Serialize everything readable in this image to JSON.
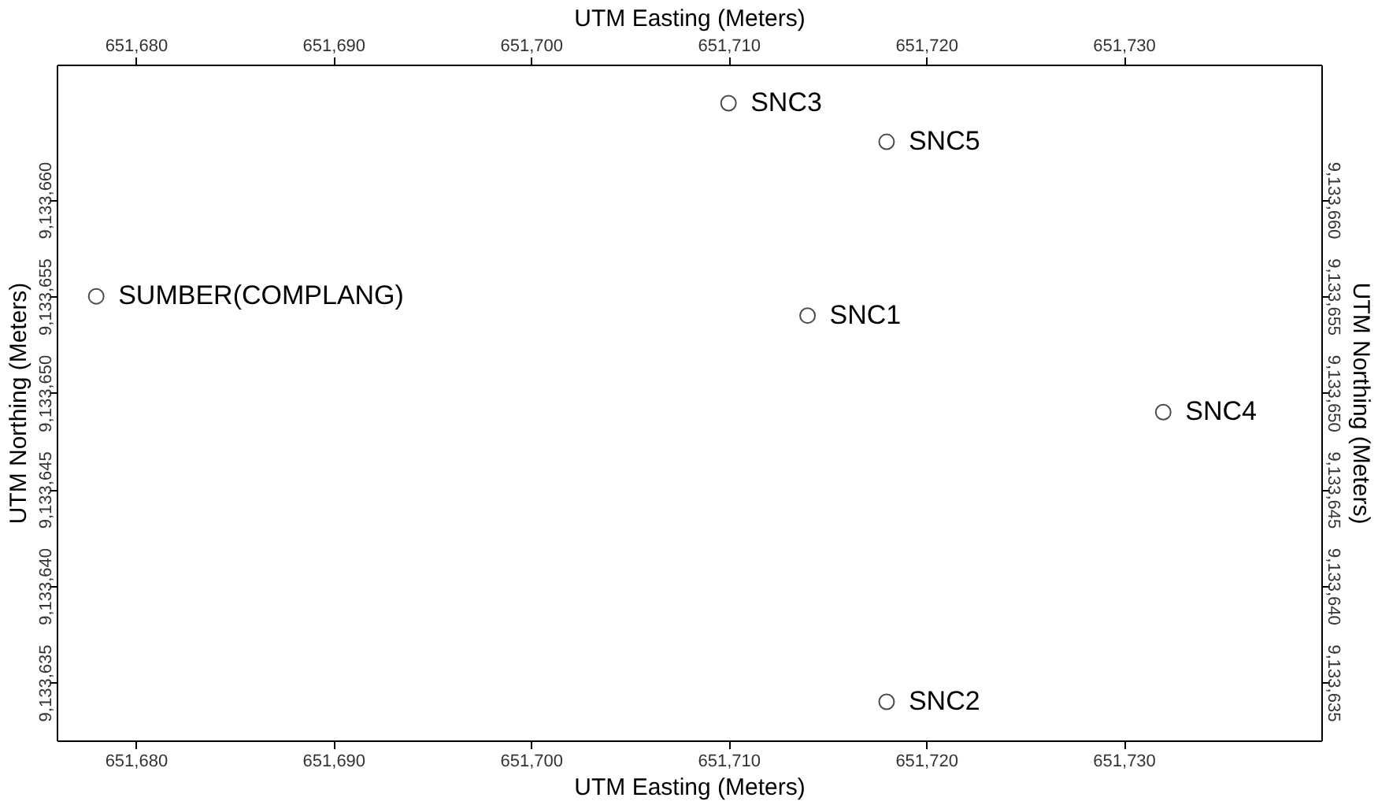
{
  "chart_data": {
    "type": "scatter",
    "xlabel": "UTM Easting (Meters)",
    "x2label": "UTM Easting (Meters)",
    "ylabel": "UTM Northing (Meters)",
    "y2label": "UTM Northing (Meters)",
    "x": [
      651678,
      651714,
      651718,
      651710,
      651732,
      651718
    ],
    "values": [
      9133655,
      9133654,
      9133634,
      9133665,
      9133649,
      9133663
    ],
    "color": "#000000",
    "marker": "circle",
    "grid": false,
    "xlim": [
      651676,
      651740
    ],
    "xticks": [
      {
        "value": 651680,
        "label": "651,680"
      },
      {
        "value": 651690,
        "label": "651,690"
      },
      {
        "value": 651700,
        "label": "651,700"
      },
      {
        "value": 651710,
        "label": "651,710"
      },
      {
        "value": 651720,
        "label": "651,720"
      },
      {
        "value": 651730,
        "label": "651,730"
      }
    ],
    "x2lim": [
      651676,
      651740
    ],
    "x2ticks": [
      {
        "value": 651680,
        "label": "651,680"
      },
      {
        "value": 651690,
        "label": "651,690"
      },
      {
        "value": 651700,
        "label": "651,700"
      },
      {
        "value": 651710,
        "label": "651,710"
      },
      {
        "value": 651720,
        "label": "651,720"
      },
      {
        "value": 651730,
        "label": "651,730"
      }
    ],
    "ylim": [
      9133632,
      9133667
    ],
    "yticks": [
      {
        "value": 9133635,
        "label": "9,133,635"
      },
      {
        "value": 9133640,
        "label": "9,133,640"
      },
      {
        "value": 9133645,
        "label": "9,133,645"
      },
      {
        "value": 9133650,
        "label": "9,133,650"
      },
      {
        "value": 9133655,
        "label": "9,133,655"
      },
      {
        "value": 9133660,
        "label": "9,133,660"
      }
    ],
    "y2lim": [
      9133632,
      9133667
    ],
    "y2ticks": [
      {
        "value": 9133635,
        "label": "9,133,635"
      },
      {
        "value": 9133640,
        "label": "9,133,640"
      },
      {
        "value": 9133645,
        "label": "9,133,645"
      },
      {
        "value": 9133650,
        "label": "9,133,650"
      },
      {
        "value": 9133655,
        "label": "9,133,655"
      },
      {
        "value": 9133660,
        "label": "9,133,660"
      }
    ],
    "annotations": [
      {
        "text": "SUMBER(COMPLANG)",
        "x": 651678,
        "y": 9133655
      },
      {
        "text": "SNC1",
        "x": 651714,
        "y": 9133654
      },
      {
        "text": "SNC2",
        "x": 651718,
        "y": 9133634
      },
      {
        "text": "SNC3",
        "x": 651710,
        "y": 9133665
      },
      {
        "text": "SNC4",
        "x": 651732,
        "y": 9133649
      },
      {
        "text": "SNC5",
        "x": 651718,
        "y": 9133663
      }
    ]
  }
}
